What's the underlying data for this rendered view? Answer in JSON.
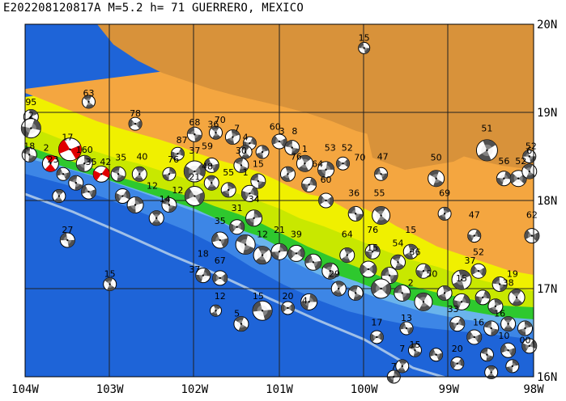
{
  "title": "E202208120817A M=5.2 h= 71 GUERRERO, MEXICO",
  "lon_range": [
    -104,
    -98
  ],
  "lat_range": [
    16,
    20
  ],
  "colors": {
    "deep_ocean": "#1e64d8",
    "shallow_ocean": "#6ab4ec",
    "coast": "#2ec82e",
    "lowland": "#c8e800",
    "hills": "#f0f000",
    "plateau": "#f4a640",
    "highland": "#d8923a",
    "trench": "#a0c0e8",
    "grid": "#202020",
    "beachball_light": "#e0e0e0",
    "beachball_dark": "#505050",
    "highlight": "#e00000"
  },
  "x_ticks": [
    "104W",
    "103W",
    "102W",
    "101W",
    "100W",
    "99W",
    "98W"
  ],
  "y_ticks": [
    "20N",
    "19N",
    "18N",
    "17N",
    "16N"
  ],
  "events": [
    {
      "lon": -100.0,
      "lat": 19.73,
      "depth": "15"
    },
    {
      "lon": -103.25,
      "lat": 19.1,
      "depth": "63"
    },
    {
      "lon": -103.93,
      "lat": 19.0,
      "depth": "95"
    },
    {
      "lon": -103.93,
      "lat": 18.85,
      "depth": "2"
    },
    {
      "lon": -102.7,
      "lat": 18.87,
      "depth": "78"
    },
    {
      "lon": -102.0,
      "lat": 18.77,
      "depth": "68"
    },
    {
      "lon": -101.7,
      "lat": 18.8,
      "depth": "70"
    },
    {
      "lon": -101.78,
      "lat": 18.75,
      "depth": "36"
    },
    {
      "lon": -101.5,
      "lat": 18.7,
      "depth": "7"
    },
    {
      "lon": -101.05,
      "lat": 18.72,
      "depth": "60"
    },
    {
      "lon": -100.97,
      "lat": 18.67,
      "depth": "3"
    },
    {
      "lon": -100.82,
      "lat": 18.67,
      "depth": "8"
    },
    {
      "lon": -101.4,
      "lat": 18.6,
      "depth": "4"
    },
    {
      "lon": -102.15,
      "lat": 18.57,
      "depth": "87"
    },
    {
      "lon": -103.5,
      "lat": 18.6,
      "depth": "17"
    },
    {
      "lon": -103.95,
      "lat": 18.5,
      "depth": "18"
    },
    {
      "lon": -103.75,
      "lat": 18.48,
      "depth": "2"
    },
    {
      "lon": -103.3,
      "lat": 18.46,
      "depth": "160"
    },
    {
      "lon": -103.67,
      "lat": 18.35,
      "depth": "23"
    },
    {
      "lon": -103.22,
      "lat": 18.32,
      "depth": "35"
    },
    {
      "lon": -103.05,
      "lat": 18.32,
      "depth": "42"
    },
    {
      "lon": -102.87,
      "lat": 18.37,
      "depth": "35"
    },
    {
      "lon": -102.62,
      "lat": 18.38,
      "depth": "40"
    },
    {
      "lon": -102.25,
      "lat": 18.35,
      "depth": "76"
    },
    {
      "lon": -102.0,
      "lat": 18.45,
      "depth": "37"
    },
    {
      "lon": -101.85,
      "lat": 18.5,
      "depth": "59"
    },
    {
      "lon": -101.45,
      "lat": 18.45,
      "depth": "30"
    },
    {
      "lon": -100.7,
      "lat": 18.47,
      "depth": "1"
    },
    {
      "lon": -100.4,
      "lat": 18.48,
      "depth": "53"
    },
    {
      "lon": -100.2,
      "lat": 18.48,
      "depth": "52"
    },
    {
      "lon": -100.05,
      "lat": 18.37,
      "depth": "70"
    },
    {
      "lon": -99.78,
      "lat": 18.38,
      "depth": "47"
    },
    {
      "lon": -99.15,
      "lat": 18.37,
      "depth": "50"
    },
    {
      "lon": -98.55,
      "lat": 18.7,
      "depth": "51"
    },
    {
      "lon": -98.35,
      "lat": 18.33,
      "depth": "56"
    },
    {
      "lon": -98.15,
      "lat": 18.33,
      "depth": "52"
    },
    {
      "lon": -98.03,
      "lat": 18.5,
      "depth": "52"
    },
    {
      "lon": -98.05,
      "lat": 18.45,
      "depth": "6"
    },
    {
      "lon": -100.8,
      "lat": 18.38,
      "depth": "76"
    },
    {
      "lon": -100.55,
      "lat": 18.3,
      "depth": "64"
    },
    {
      "lon": -100.45,
      "lat": 18.12,
      "depth": "60"
    },
    {
      "lon": -100.12,
      "lat": 17.97,
      "depth": "36"
    },
    {
      "lon": -99.82,
      "lat": 17.97,
      "depth": "55"
    },
    {
      "lon": -99.05,
      "lat": 17.97,
      "depth": "69"
    },
    {
      "lon": -98.7,
      "lat": 17.72,
      "depth": "47"
    },
    {
      "lon": -98.02,
      "lat": 17.72,
      "depth": "62"
    },
    {
      "lon": -101.25,
      "lat": 18.3,
      "depth": "15"
    },
    {
      "lon": -101.85,
      "lat": 18.27,
      "depth": "48"
    },
    {
      "lon": -101.6,
      "lat": 18.2,
      "depth": "55"
    },
    {
      "lon": -101.4,
      "lat": 18.2,
      "depth": "1"
    },
    {
      "lon": -102.0,
      "lat": 18.15,
      "depth": "21"
    },
    {
      "lon": -102.2,
      "lat": 18.0,
      "depth": "12"
    },
    {
      "lon": -102.35,
      "lat": 17.9,
      "depth": "14"
    },
    {
      "lon": -102.5,
      "lat": 18.05,
      "depth": "12"
    },
    {
      "lon": -101.3,
      "lat": 17.9,
      "depth": "34"
    },
    {
      "lon": -101.5,
      "lat": 17.8,
      "depth": "31"
    },
    {
      "lon": -101.7,
      "lat": 17.65,
      "depth": "35"
    },
    {
      "lon": -101.2,
      "lat": 17.5,
      "depth": "12"
    },
    {
      "lon": -101.0,
      "lat": 17.55,
      "depth": "21"
    },
    {
      "lon": -100.8,
      "lat": 17.5,
      "depth": "39"
    },
    {
      "lon": -99.9,
      "lat": 17.55,
      "depth": "76"
    },
    {
      "lon": -100.2,
      "lat": 17.5,
      "depth": "64"
    },
    {
      "lon": -99.9,
      "lat": 17.35,
      "depth": "15"
    },
    {
      "lon": -99.6,
      "lat": 17.4,
      "depth": "54"
    },
    {
      "lon": -99.45,
      "lat": 17.55,
      "depth": "15"
    },
    {
      "lon": -99.4,
      "lat": 17.3,
      "depth": "36"
    },
    {
      "lon": -98.65,
      "lat": 17.3,
      "depth": "52"
    },
    {
      "lon": -98.75,
      "lat": 17.2,
      "depth": "37"
    },
    {
      "lon": -98.25,
      "lat": 17.05,
      "depth": "19"
    },
    {
      "lon": -98.3,
      "lat": 16.95,
      "depth": "38"
    },
    {
      "lon": -101.9,
      "lat": 17.28,
      "depth": "18"
    },
    {
      "lon": -101.7,
      "lat": 17.2,
      "depth": "67"
    },
    {
      "lon": -102.0,
      "lat": 17.1,
      "depth": "37"
    },
    {
      "lon": -103.5,
      "lat": 17.55,
      "depth": "27"
    },
    {
      "lon": -103.0,
      "lat": 17.05,
      "depth": "15"
    },
    {
      "lon": -101.25,
      "lat": 16.8,
      "depth": "15"
    },
    {
      "lon": -101.5,
      "lat": 16.6,
      "depth": "5"
    },
    {
      "lon": -101.7,
      "lat": 16.8,
      "depth": "12"
    },
    {
      "lon": -100.9,
      "lat": 16.8,
      "depth": "20"
    },
    {
      "lon": -100.7,
      "lat": 16.75,
      "depth": "4"
    },
    {
      "lon": -99.45,
      "lat": 16.95,
      "depth": "2"
    },
    {
      "lon": -99.2,
      "lat": 17.05,
      "depth": "50"
    },
    {
      "lon": -98.85,
      "lat": 17.0,
      "depth": "15"
    },
    {
      "lon": -98.95,
      "lat": 16.65,
      "depth": "33"
    },
    {
      "lon": -98.65,
      "lat": 16.5,
      "depth": "16"
    },
    {
      "lon": -99.5,
      "lat": 16.55,
      "depth": "13"
    },
    {
      "lon": -99.85,
      "lat": 16.5,
      "depth": "17"
    },
    {
      "lon": -99.4,
      "lat": 16.25,
      "depth": "15"
    },
    {
      "lon": -99.55,
      "lat": 16.2,
      "depth": "7"
    },
    {
      "lon": -98.9,
      "lat": 16.2,
      "depth": "20"
    },
    {
      "lon": -98.35,
      "lat": 16.35,
      "depth": "10"
    },
    {
      "lon": -98.1,
      "lat": 16.3,
      "depth": "00"
    },
    {
      "lon": -98.4,
      "lat": 16.6,
      "depth": "16"
    },
    {
      "lon": -99.65,
      "lat": 16.0,
      "depth": "7"
    },
    {
      "lon": -100.35,
      "lat": 17.05,
      "depth": "29"
    }
  ],
  "beachballs": [
    {
      "lon": -100.0,
      "lat": 19.73,
      "size": 7
    },
    {
      "lon": -103.25,
      "lat": 19.12,
      "size": 8
    },
    {
      "lon": -103.93,
      "lat": 18.95,
      "size": 9
    },
    {
      "lon": -103.93,
      "lat": 18.82,
      "size": 12
    },
    {
      "lon": -102.7,
      "lat": 18.87,
      "size": 8
    },
    {
      "lon": -102.0,
      "lat": 18.75,
      "size": 9
    },
    {
      "lon": -101.75,
      "lat": 18.77,
      "size": 8
    },
    {
      "lon": -101.55,
      "lat": 18.72,
      "size": 9
    },
    {
      "lon": -101.35,
      "lat": 18.65,
      "size": 8
    },
    {
      "lon": -101.0,
      "lat": 18.67,
      "size": 9
    },
    {
      "lon": -100.85,
      "lat": 18.6,
      "size": 9
    },
    {
      "lon": -101.4,
      "lat": 18.55,
      "size": 8
    },
    {
      "lon": -101.2,
      "lat": 18.55,
      "size": 8
    },
    {
      "lon": -102.2,
      "lat": 18.53,
      "size": 8
    },
    {
      "lon": -103.47,
      "lat": 18.58,
      "size": 14,
      "highlight": true
    },
    {
      "lon": -103.95,
      "lat": 18.52,
      "size": 9
    },
    {
      "lon": -103.7,
      "lat": 18.42,
      "size": 10,
      "highlight": true
    },
    {
      "lon": -103.3,
      "lat": 18.42,
      "size": 10
    },
    {
      "lon": -103.1,
      "lat": 18.3,
      "size": 10,
      "highlight": true
    },
    {
      "lon": -103.55,
      "lat": 18.3,
      "size": 8
    },
    {
      "lon": -102.9,
      "lat": 18.3,
      "size": 9
    },
    {
      "lon": -102.65,
      "lat": 18.3,
      "size": 9
    },
    {
      "lon": -102.3,
      "lat": 18.3,
      "size": 8
    },
    {
      "lon": -102.0,
      "lat": 18.33,
      "size": 13
    },
    {
      "lon": -101.8,
      "lat": 18.4,
      "size": 9
    },
    {
      "lon": -101.45,
      "lat": 18.4,
      "size": 9
    },
    {
      "lon": -100.7,
      "lat": 18.42,
      "size": 10
    },
    {
      "lon": -100.45,
      "lat": 18.35,
      "size": 10
    },
    {
      "lon": -100.25,
      "lat": 18.42,
      "size": 8
    },
    {
      "lon": -99.8,
      "lat": 18.3,
      "size": 8
    },
    {
      "lon": -99.15,
      "lat": 18.25,
      "size": 10
    },
    {
      "lon": -98.55,
      "lat": 18.57,
      "size": 13
    },
    {
      "lon": -98.35,
      "lat": 18.25,
      "size": 9
    },
    {
      "lon": -98.18,
      "lat": 18.25,
      "size": 10
    },
    {
      "lon": -98.05,
      "lat": 18.5,
      "size": 8
    },
    {
      "lon": -98.05,
      "lat": 18.33,
      "size": 9
    },
    {
      "lon": -100.9,
      "lat": 18.3,
      "size": 9
    },
    {
      "lon": -100.65,
      "lat": 18.18,
      "size": 9
    },
    {
      "lon": -100.45,
      "lat": 18.0,
      "size": 9
    },
    {
      "lon": -100.1,
      "lat": 17.85,
      "size": 9
    },
    {
      "lon": -99.8,
      "lat": 17.83,
      "size": 11
    },
    {
      "lon": -99.05,
      "lat": 17.85,
      "size": 8
    },
    {
      "lon": -98.7,
      "lat": 17.6,
      "size": 8
    },
    {
      "lon": -98.02,
      "lat": 17.6,
      "size": 9
    },
    {
      "lon": -101.25,
      "lat": 18.22,
      "size": 9
    },
    {
      "lon": -101.8,
      "lat": 18.2,
      "size": 9
    },
    {
      "lon": -101.6,
      "lat": 18.12,
      "size": 9
    },
    {
      "lon": -101.35,
      "lat": 18.08,
      "size": 10
    },
    {
      "lon": -102.0,
      "lat": 18.05,
      "size": 12
    },
    {
      "lon": -102.3,
      "lat": 17.95,
      "size": 9
    },
    {
      "lon": -102.45,
      "lat": 17.8,
      "size": 9
    },
    {
      "lon": -102.7,
      "lat": 17.95,
      "size": 10
    },
    {
      "lon": -102.85,
      "lat": 18.05,
      "size": 9
    },
    {
      "lon": -103.25,
      "lat": 18.1,
      "size": 9
    },
    {
      "lon": -103.4,
      "lat": 18.2,
      "size": 9
    },
    {
      "lon": -103.6,
      "lat": 18.05,
      "size": 8
    },
    {
      "lon": -101.3,
      "lat": 17.8,
      "size": 10
    },
    {
      "lon": -101.5,
      "lat": 17.7,
      "size": 9
    },
    {
      "lon": -101.7,
      "lat": 17.55,
      "size": 10
    },
    {
      "lon": -101.4,
      "lat": 17.5,
      "size": 12
    },
    {
      "lon": -101.2,
      "lat": 17.38,
      "size": 11
    },
    {
      "lon": -101.0,
      "lat": 17.42,
      "size": 10
    },
    {
      "lon": -100.8,
      "lat": 17.4,
      "size": 10
    },
    {
      "lon": -100.6,
      "lat": 17.3,
      "size": 10
    },
    {
      "lon": -100.4,
      "lat": 17.2,
      "size": 10
    },
    {
      "lon": -100.2,
      "lat": 17.38,
      "size": 9
    },
    {
      "lon": -99.9,
      "lat": 17.42,
      "size": 9
    },
    {
      "lon": -99.95,
      "lat": 17.22,
      "size": 10
    },
    {
      "lon": -99.7,
      "lat": 17.15,
      "size": 10
    },
    {
      "lon": -99.6,
      "lat": 17.3,
      "size": 9
    },
    {
      "lon": -99.45,
      "lat": 17.42,
      "size": 9
    },
    {
      "lon": -99.3,
      "lat": 17.2,
      "size": 9
    },
    {
      "lon": -99.8,
      "lat": 17.0,
      "size": 12
    },
    {
      "lon": -99.55,
      "lat": 16.95,
      "size": 10
    },
    {
      "lon": -99.3,
      "lat": 16.85,
      "size": 11
    },
    {
      "lon": -99.05,
      "lat": 16.95,
      "size": 9
    },
    {
      "lon": -98.85,
      "lat": 16.85,
      "size": 10
    },
    {
      "lon": -98.65,
      "lat": 17.2,
      "size": 9
    },
    {
      "lon": -98.4,
      "lat": 17.05,
      "size": 9
    },
    {
      "lon": -98.2,
      "lat": 16.9,
      "size": 10
    },
    {
      "lon": -98.45,
      "lat": 16.8,
      "size": 9
    },
    {
      "lon": -98.9,
      "lat": 16.6,
      "size": 9
    },
    {
      "lon": -98.7,
      "lat": 16.45,
      "size": 9
    },
    {
      "lon": -98.5,
      "lat": 16.55,
      "size": 9
    },
    {
      "lon": -98.3,
      "lat": 16.6,
      "size": 9
    },
    {
      "lon": -98.1,
      "lat": 16.55,
      "size": 9
    },
    {
      "lon": -98.05,
      "lat": 16.35,
      "size": 9
    },
    {
      "lon": -98.3,
      "lat": 16.3,
      "size": 9
    },
    {
      "lon": -98.55,
      "lat": 16.25,
      "size": 8
    },
    {
      "lon": -98.5,
      "lat": 16.05,
      "size": 8
    },
    {
      "lon": -98.25,
      "lat": 16.12,
      "size": 8
    },
    {
      "lon": -98.9,
      "lat": 16.15,
      "size": 8
    },
    {
      "lon": -99.15,
      "lat": 16.25,
      "size": 8
    },
    {
      "lon": -99.4,
      "lat": 16.3,
      "size": 8
    },
    {
      "lon": -99.55,
      "lat": 16.12,
      "size": 8
    },
    {
      "lon": -99.65,
      "lat": 16.0,
      "size": 8
    },
    {
      "lon": -99.85,
      "lat": 16.45,
      "size": 8
    },
    {
      "lon": -99.5,
      "lat": 16.55,
      "size": 8
    },
    {
      "lon": -100.1,
      "lat": 16.95,
      "size": 9
    },
    {
      "lon": -100.3,
      "lat": 17.0,
      "size": 9
    },
    {
      "lon": -100.65,
      "lat": 16.85,
      "size": 10
    },
    {
      "lon": -100.9,
      "lat": 16.78,
      "size": 8
    },
    {
      "lon": -101.2,
      "lat": 16.75,
      "size": 12
    },
    {
      "lon": -101.45,
      "lat": 16.6,
      "size": 9
    },
    {
      "lon": -101.75,
      "lat": 16.75,
      "size": 7
    },
    {
      "lon": -101.9,
      "lat": 17.15,
      "size": 9
    },
    {
      "lon": -101.7,
      "lat": 17.12,
      "size": 9
    },
    {
      "lon": -103.5,
      "lat": 17.55,
      "size": 9
    },
    {
      "lon": -103.0,
      "lat": 17.05,
      "size": 8
    },
    {
      "lon": -98.85,
      "lat": 17.1,
      "size": 12
    },
    {
      "lon": -98.6,
      "lat": 16.9,
      "size": 9
    }
  ]
}
